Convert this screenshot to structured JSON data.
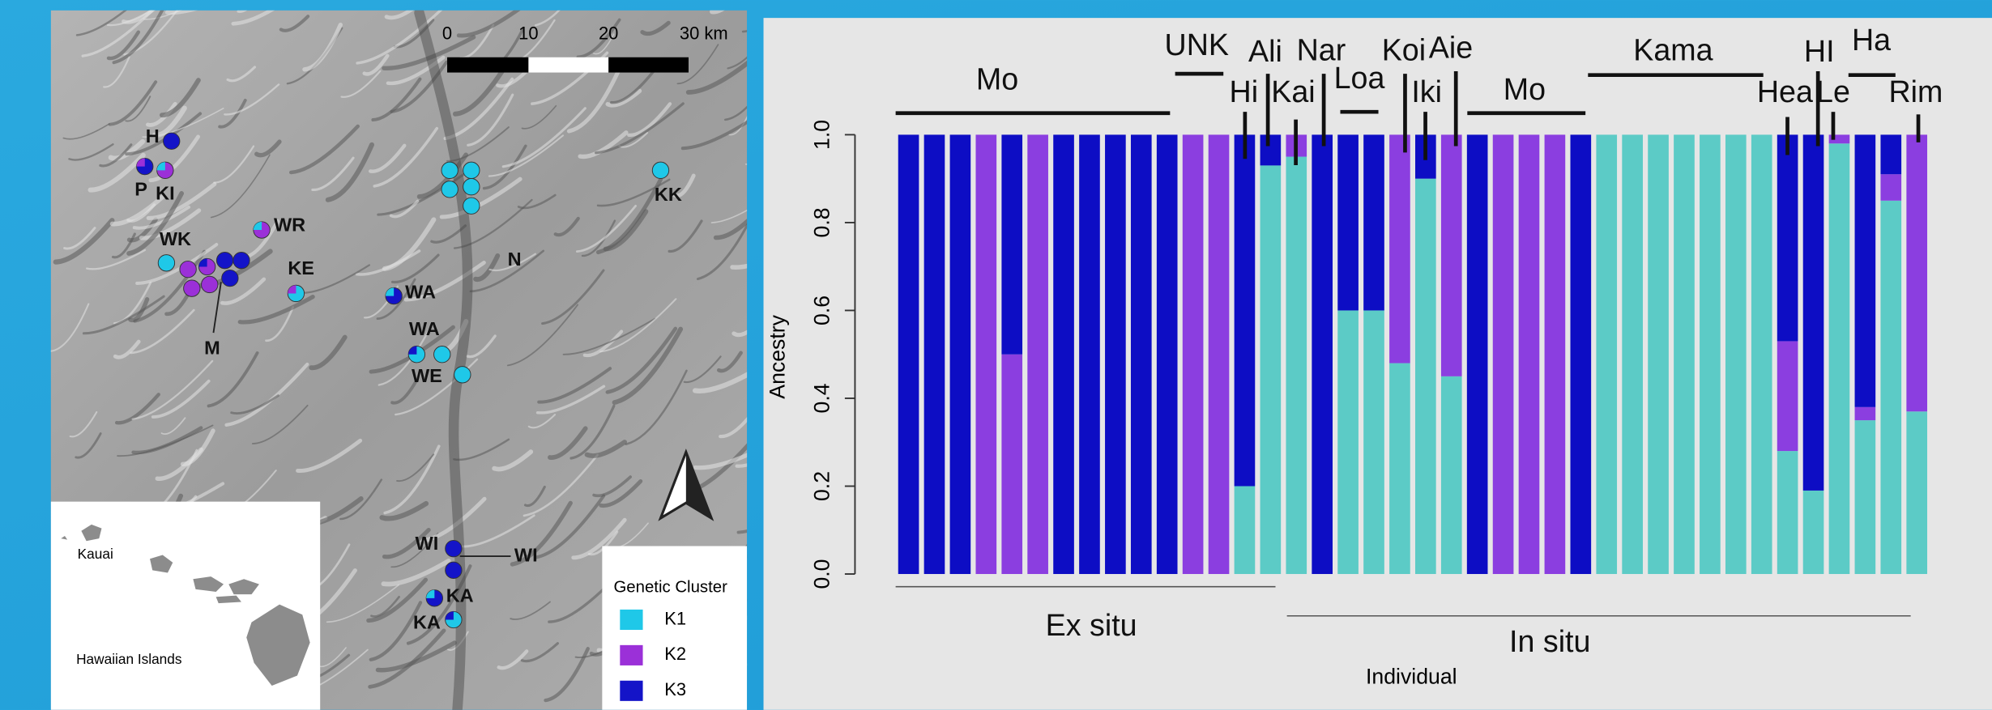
{
  "chart_data": {
    "type": "stacked_bar",
    "x_label": "Individual",
    "y_label": "Ancestry",
    "categories": [
      null,
      null,
      null,
      null,
      null,
      null,
      null,
      null,
      null,
      null,
      null,
      null,
      null,
      null,
      null,
      null,
      null,
      null,
      null,
      null,
      null,
      null,
      null,
      null,
      null,
      null,
      null,
      null,
      null,
      null,
      null,
      null,
      null,
      null,
      null,
      null,
      null,
      null,
      null,
      null
    ],
    "series": [
      {
        "name": "K1",
        "color": "#5ccbc6",
        "values": [
          0,
          0,
          0,
          0,
          0,
          0,
          0,
          0,
          0,
          0,
          0,
          0,
          0,
          0.2,
          0.93,
          0.95,
          0,
          0.6,
          0.6,
          0.48,
          0.9,
          0.45,
          0,
          0,
          0,
          0,
          0,
          1,
          1,
          1,
          1,
          1,
          1,
          1,
          0.28,
          0.19,
          0.98,
          0.35,
          0.85,
          0.37
        ]
      },
      {
        "name": "K2",
        "color": "#8b3ee0",
        "values": [
          0,
          0,
          0,
          1,
          0.5,
          1,
          0,
          0,
          0,
          0,
          0,
          1,
          1,
          0,
          0,
          0.05,
          0,
          0,
          0,
          0.52,
          0,
          0.55,
          0,
          1,
          1,
          1,
          0,
          0,
          0,
          0,
          0,
          0,
          0,
          0,
          0.25,
          0,
          0.02,
          0.03,
          0.06,
          0.63
        ]
      },
      {
        "name": "K3",
        "color": "#0d0dc4",
        "values": [
          1,
          1,
          1,
          0,
          0.5,
          0,
          1,
          1,
          1,
          1,
          1,
          0,
          0,
          0.8,
          0.07,
          0,
          1,
          0.4,
          0.4,
          0,
          0.1,
          0,
          1,
          0,
          0,
          0,
          1,
          0,
          0,
          0,
          0,
          0,
          0,
          0,
          0.47,
          0.81,
          0,
          0.62,
          0.09,
          0
        ]
      }
    ],
    "ylim": [
      0,
      1
    ],
    "yticks": [
      {
        "value": 0,
        "label": "0.0"
      },
      0.2,
      0.4,
      0.6,
      0.8,
      {
        "value": 1,
        "label": "1.0"
      }
    ],
    "annotations": [
      "Mo",
      "UNK",
      "Ali",
      "Hi",
      "Kai",
      "Nar",
      "Loa",
      "Koi",
      "Iki",
      "Aie",
      "Mo",
      "Kama",
      "Hea",
      "HI",
      "Le",
      "Ha",
      "Rim",
      "Ex situ",
      "In situ"
    ]
  },
  "map": {
    "scale_labels": [
      "0",
      "10",
      "20",
      "30 km"
    ],
    "sites": [
      "H",
      "P",
      "KI",
      "WK",
      "WR",
      "KE",
      "M",
      "WA",
      "WA",
      "WE",
      "N",
      "KK",
      "WI",
      "WI",
      "KA",
      "KA"
    ],
    "inset_labels": [
      "Kauai",
      "Hawaiian Islands"
    ],
    "legend_title": "Genetic Cluster",
    "legend": [
      {
        "name": "K1",
        "color": "#1fc8e8"
      },
      {
        "name": "K2",
        "color": "#9b30d8"
      },
      {
        "name": "K3",
        "color": "#1414c8"
      }
    ]
  }
}
